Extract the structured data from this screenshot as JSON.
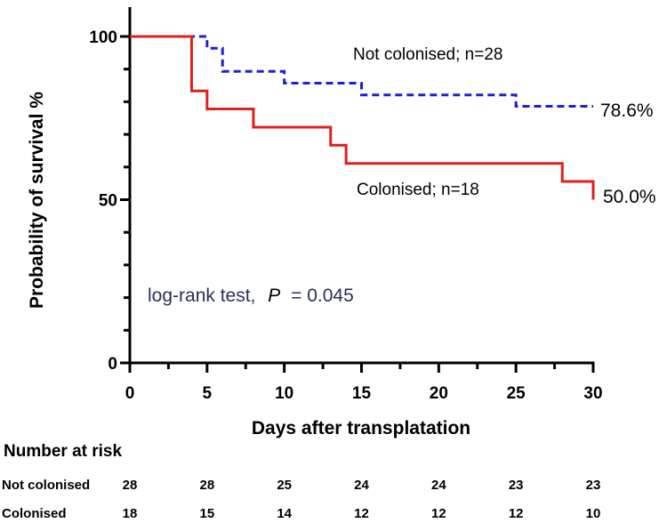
{
  "chart_data": {
    "type": "line",
    "subtype": "kaplan-meier step plot",
    "xlabel": "Days after transplatation",
    "ylabel": "Probability of survival %",
    "xlim": [
      0,
      30
    ],
    "ylim": [
      0,
      100
    ],
    "xticks": [
      0,
      5,
      10,
      15,
      20,
      25,
      30
    ],
    "xminor_step": 2.5,
    "yticks": [
      0,
      50,
      100
    ],
    "yminor_step": 10,
    "grid": false,
    "series": [
      {
        "name": "Not colonised",
        "label": "Not colonised; n=28",
        "end_label": "78.6%",
        "color": "#1f1fd6",
        "dash": "dashed",
        "steps": [
          [
            0,
            100
          ],
          [
            5,
            96.4
          ],
          [
            6,
            89.3
          ],
          [
            10,
            85.7
          ],
          [
            15,
            82.1
          ],
          [
            25,
            78.6
          ],
          [
            30,
            78.6
          ]
        ]
      },
      {
        "name": "Colonised",
        "label": "Colonised; n=18",
        "end_label": "50.0%",
        "color": "#e0201b",
        "dash": "solid",
        "steps": [
          [
            0,
            100
          ],
          [
            4,
            83.3
          ],
          [
            5,
            77.8
          ],
          [
            8,
            72.2
          ],
          [
            13,
            66.7
          ],
          [
            14,
            61.1
          ],
          [
            28,
            55.6
          ],
          [
            30,
            50.0
          ]
        ]
      }
    ],
    "annotation": {
      "prefix": "log-rank test,",
      "symbol": "P",
      "suffix": "= 0.045"
    },
    "risk_table": {
      "title": "Number at risk",
      "days": [
        0,
        5,
        10,
        15,
        20,
        25,
        30
      ],
      "rows": [
        {
          "label": "Not colonised",
          "values": [
            "28",
            "28",
            "25",
            "24",
            "24",
            "23",
            "23"
          ]
        },
        {
          "label": "Colonised",
          "values": [
            "18",
            "15",
            "14",
            "12",
            "12",
            "12",
            "10"
          ]
        }
      ]
    }
  }
}
